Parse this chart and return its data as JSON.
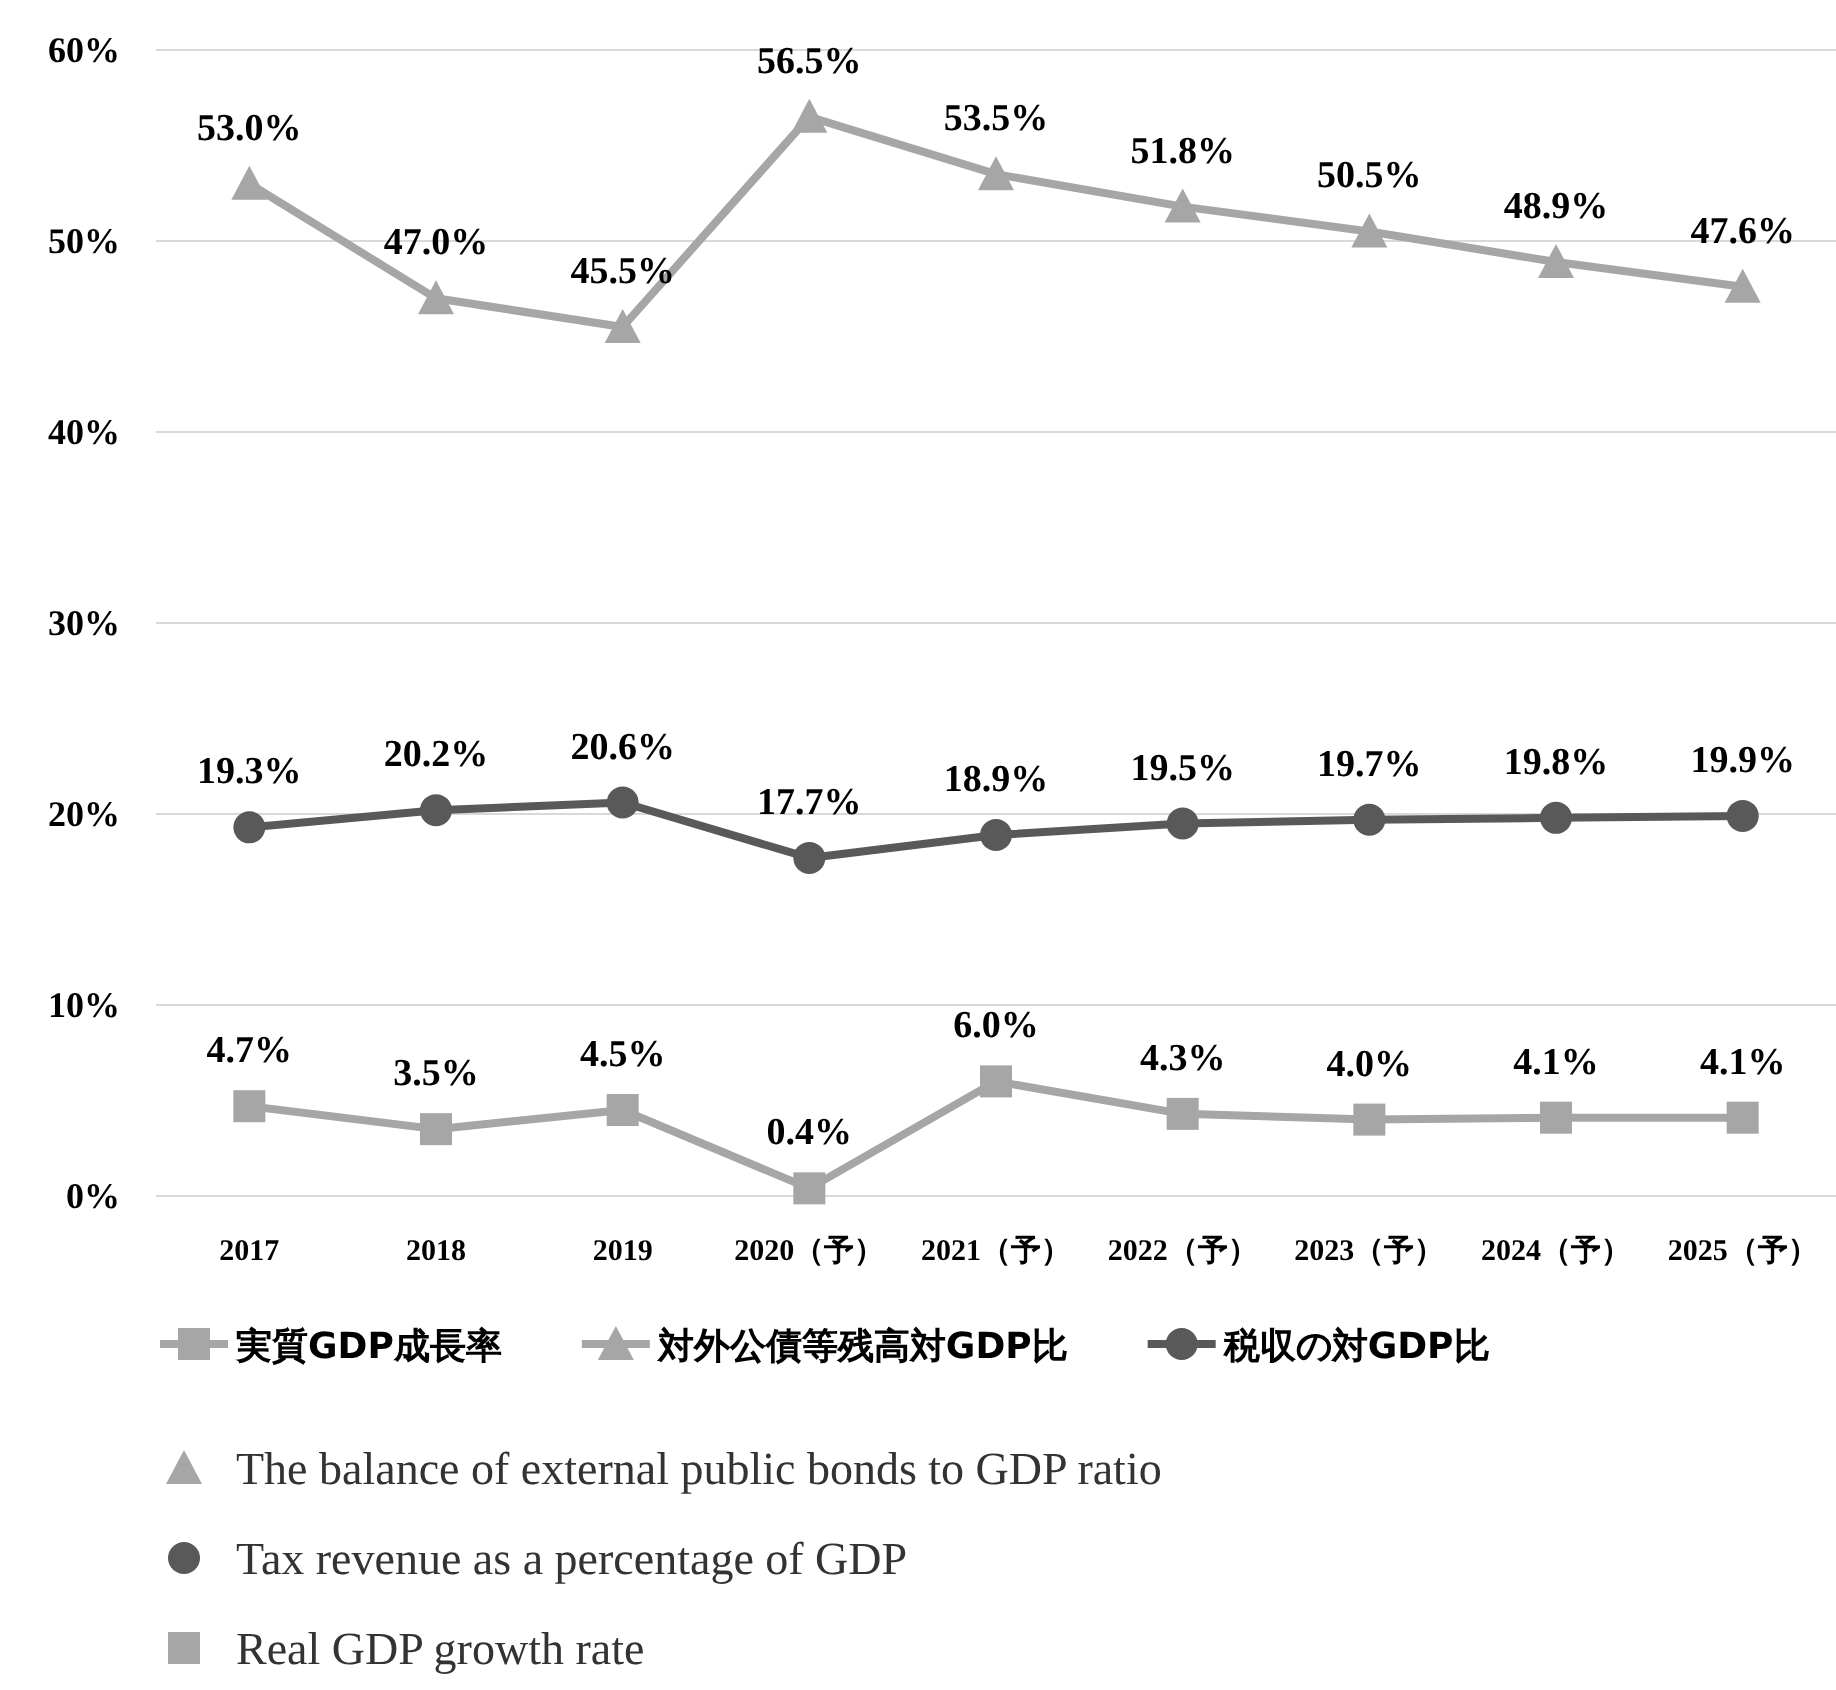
{
  "chart_data": {
    "type": "line",
    "categories": [
      "2017",
      "2018",
      "2019",
      "2020（予）",
      "2021（予）",
      "2022（予）",
      "2023（予）",
      "2024（予）",
      "2025（予）"
    ],
    "series": [
      {
        "name": "実質GDP成長率",
        "color": "#a6a6a6",
        "marker": "square",
        "values": [
          4.7,
          3.5,
          4.5,
          0.4,
          6.0,
          4.3,
          4.0,
          4.1,
          4.1
        ],
        "value_labels": [
          "4.7%",
          "3.5%",
          "4.5%",
          "0.4%",
          "6.0%",
          "4.3%",
          "4.0%",
          "4.1%",
          "4.1%"
        ]
      },
      {
        "name": "対外公債等残高対GDP比",
        "color": "#a6a6a6",
        "marker": "triangle",
        "values": [
          53.0,
          47.0,
          45.5,
          56.5,
          53.5,
          51.8,
          50.5,
          48.9,
          47.6
        ],
        "value_labels": [
          "53.0%",
          "47.0%",
          "45.5%",
          "56.5%",
          "53.5%",
          "51.8%",
          "50.5%",
          "48.9%",
          "47.6%"
        ]
      },
      {
        "name": "税収の対GDP比",
        "color": "#595959",
        "marker": "circle",
        "values": [
          19.3,
          20.2,
          20.6,
          17.7,
          18.9,
          19.5,
          19.7,
          19.8,
          19.9
        ],
        "value_labels": [
          "19.3%",
          "20.2%",
          "20.6%",
          "17.7%",
          "18.9%",
          "19.5%",
          "19.7%",
          "19.8%",
          "19.9%"
        ]
      }
    ],
    "ylim": [
      0,
      60
    ],
    "yticks": [
      {
        "value": 0,
        "label": "0%"
      },
      {
        "value": 10,
        "label": "10%"
      },
      {
        "value": 20,
        "label": "20%"
      },
      {
        "value": 30,
        "label": "30%"
      },
      {
        "value": 40,
        "label": "40%"
      },
      {
        "value": 50,
        "label": "50%"
      },
      {
        "value": 60,
        "label": "60%"
      }
    ],
    "grid": "y",
    "legend": "bottom",
    "line_style": "solid",
    "annotations": [
      "The balance of external public bonds to GDP ratio",
      "Tax revenue as a percentage of GDP",
      "Real GDP growth rate"
    ]
  }
}
